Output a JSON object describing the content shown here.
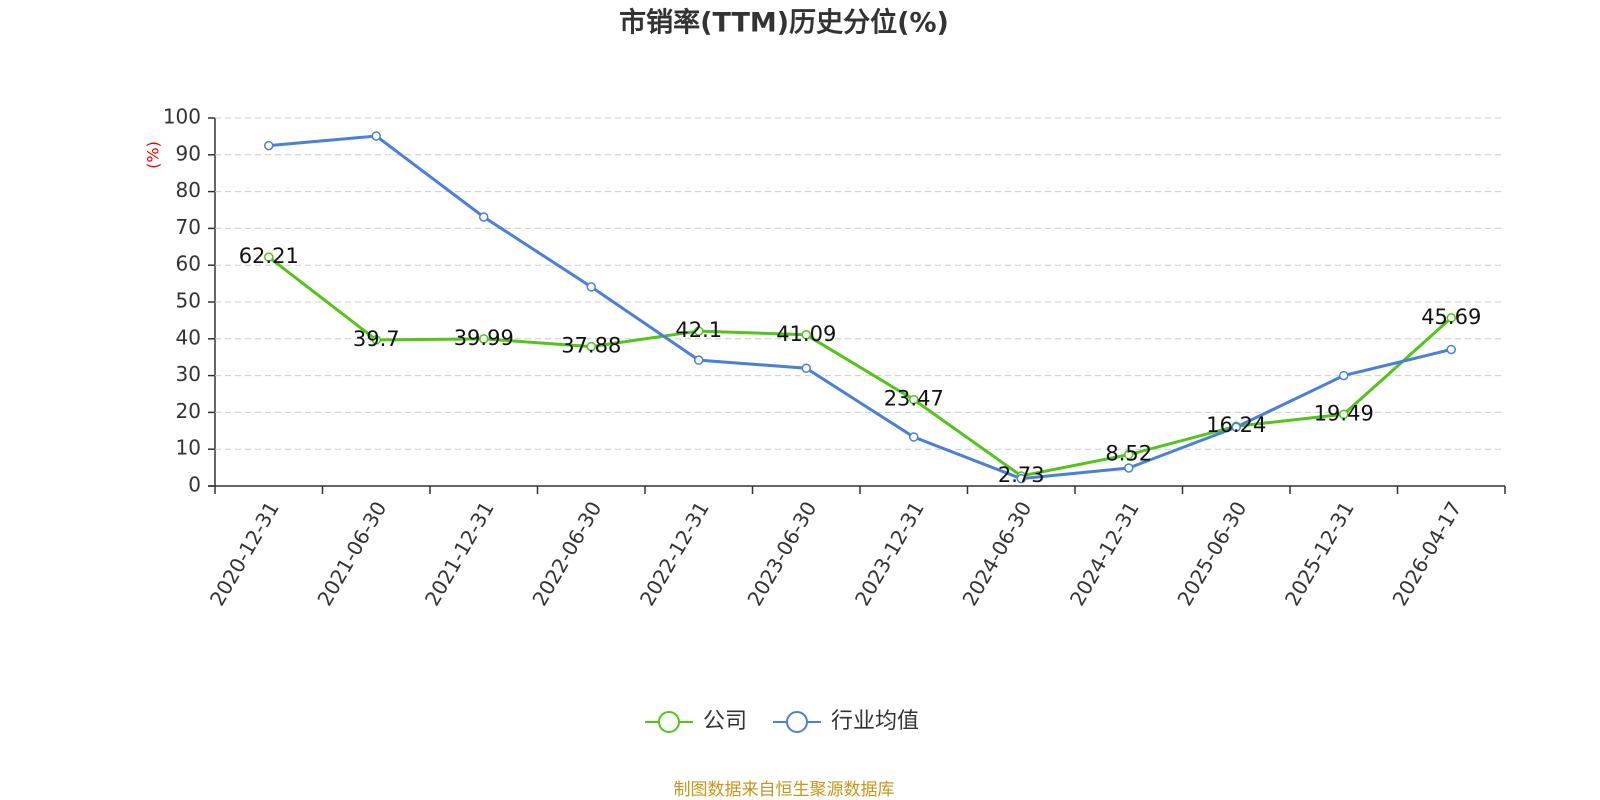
{
  "chart_data": {
    "type": "line",
    "title": "市销率(TTM)历史分位(%)",
    "y_label": "(%)",
    "categories": [
      "2020-12-31",
      "2021-06-30",
      "2021-12-31",
      "2022-06-30",
      "2022-12-31",
      "2023-06-30",
      "2023-12-31",
      "2024-06-30",
      "2024-12-31",
      "2025-06-30",
      "2025-12-31",
      "2026-04-17"
    ],
    "series": [
      {
        "name": "公司",
        "color": "#52c41a",
        "values": [
          62.21,
          39.7,
          39.99,
          37.88,
          42.1,
          41.09,
          23.47,
          2.73,
          8.52,
          16.24,
          19.49,
          45.69
        ],
        "data_labels": true
      },
      {
        "name": "行业均值",
        "color": "#4a7fdc",
        "values": [
          92.5,
          95.1,
          73.1,
          54.1,
          34.2,
          32.0,
          13.3,
          2.0,
          4.9,
          16.0,
          30.0,
          37.1
        ],
        "data_labels": false
      }
    ],
    "ylim": [
      0,
      100
    ],
    "yticks": [
      0,
      10,
      20,
      30,
      40,
      50,
      60,
      70,
      80,
      90,
      100
    ],
    "grid": true,
    "legend": "bottom",
    "source": "制图数据来自恒生聚源数据库"
  }
}
